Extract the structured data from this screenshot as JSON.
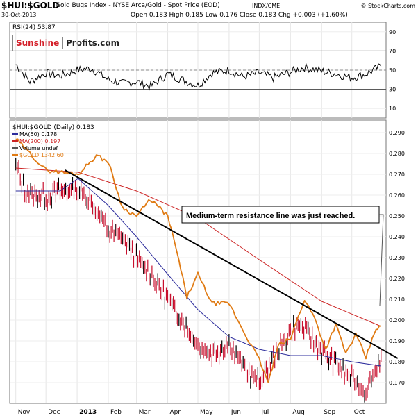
{
  "header": {
    "symbol": "$HUI:$GOLD",
    "description": "Gold Bugs Index - NYSE Arca/Gold - Spot Price (EOD)",
    "exchange": "INDX/CME",
    "credit": "© StockCharts.com",
    "date": "30-Oct-2013",
    "ohlc": "Open 0.183  High 0.185  Low 0.176  Close 0.183  Chg +0.003 (+1.60%)"
  },
  "logo": {
    "part1": "Sunshine",
    "part2": "Profits.com"
  },
  "colors": {
    "price": "#c8102e",
    "ma50": "#2c2c9c",
    "ma200": "#cc2222",
    "gold": "#e07b14",
    "trend": "#000000",
    "logo_red": "#d4202a"
  },
  "chart_data": [
    {
      "type": "line",
      "title": "RSI(24) 53.87",
      "ylim": [
        0,
        100
      ],
      "y_ticks": [
        "90",
        "70",
        "50",
        "30",
        "10"
      ],
      "reference_lines": [
        70,
        50,
        30
      ],
      "series": [
        {
          "name": "RSI(24) 53.87",
          "x": [
            "2012-11-01",
            "2012-11-15",
            "2012-12-01",
            "2012-12-15",
            "2013-01-01",
            "2013-01-15",
            "2013-02-01",
            "2013-02-15",
            "2013-03-01",
            "2013-03-15",
            "2013-04-01",
            "2013-04-15",
            "2013-05-01",
            "2013-05-15",
            "2013-06-01",
            "2013-06-15",
            "2013-07-01",
            "2013-07-15",
            "2013-08-01",
            "2013-08-15",
            "2013-09-01",
            "2013-09-15",
            "2013-10-01",
            "2013-10-15",
            "2013-10-30"
          ],
          "values": [
            56,
            38,
            47,
            44,
            50,
            52,
            40,
            36,
            38,
            33,
            46,
            40,
            34,
            47,
            50,
            43,
            47,
            42,
            48,
            53,
            49,
            46,
            42,
            46,
            54
          ]
        }
      ]
    },
    {
      "type": "line",
      "title": "$HUI:$GOLD (Daily) 0.183",
      "ylim": [
        0.16,
        0.296
      ],
      "y_ticks": [
        "0.290",
        "0.280",
        "0.270",
        "0.260",
        "0.250",
        "0.240",
        "0.230",
        "0.220",
        "0.210",
        "0.200",
        "0.190",
        "0.180",
        "0.170"
      ],
      "x_ticks": [
        "Nov",
        "Dec",
        "2013",
        "Feb",
        "Mar",
        "Apr",
        "May",
        "Jun",
        "Jul",
        "Aug",
        "Sep",
        "Oct"
      ],
      "legend": [
        "MA(50) 0.178",
        "MA(200) 0.197",
        "Volume undef",
        "$GOLD  1342.60"
      ],
      "legend_placement": "top-left",
      "annotation": "Medium-term resistance line was just reached.",
      "series": [
        {
          "name": "$HUI:$GOLD (Daily) 0.183",
          "x": [
            "2012-11-01",
            "2012-11-10",
            "2012-11-20",
            "2012-12-01",
            "2012-12-15",
            "2013-01-02",
            "2013-01-15",
            "2013-02-01",
            "2013-02-15",
            "2013-03-01",
            "2013-03-15",
            "2013-04-01",
            "2013-04-15",
            "2013-05-01",
            "2013-05-15",
            "2013-06-01",
            "2013-06-15",
            "2013-07-01",
            "2013-07-15",
            "2013-08-01",
            "2013-08-10",
            "2013-08-20",
            "2013-09-01",
            "2013-09-15",
            "2013-10-01",
            "2013-10-15",
            "2013-10-30"
          ],
          "values": [
            0.275,
            0.262,
            0.26,
            0.259,
            0.262,
            0.263,
            0.257,
            0.243,
            0.24,
            0.23,
            0.222,
            0.21,
            0.2,
            0.188,
            0.184,
            0.189,
            0.178,
            0.17,
            0.182,
            0.195,
            0.198,
            0.193,
            0.185,
            0.179,
            0.172,
            0.166,
            0.183
          ]
        },
        {
          "name": "MA(50) 0.178",
          "x": [
            "2012-11-01",
            "2012-12-15",
            "2013-01-02",
            "2013-02-01",
            "2013-03-01",
            "2013-04-01",
            "2013-05-01",
            "2013-06-01",
            "2013-07-01",
            "2013-08-01",
            "2013-09-01",
            "2013-10-01",
            "2013-10-30"
          ],
          "values": [
            0.262,
            0.262,
            0.268,
            0.255,
            0.24,
            0.222,
            0.205,
            0.192,
            0.186,
            0.183,
            0.183,
            0.18,
            0.178
          ]
        },
        {
          "name": "MA(200) 0.197",
          "x": [
            "2012-11-01",
            "2013-01-02",
            "2013-03-01",
            "2013-05-01",
            "2013-07-01",
            "2013-09-01",
            "2013-10-30"
          ],
          "values": [
            0.273,
            0.271,
            0.262,
            0.249,
            0.229,
            0.209,
            0.197
          ]
        },
        {
          "name": "$GOLD  1342.60",
          "x": [
            "2012-11-01",
            "2012-12-01",
            "2013-01-02",
            "2013-01-20",
            "2013-02-01",
            "2013-02-15",
            "2013-03-01",
            "2013-03-15",
            "2013-04-01",
            "2013-04-10",
            "2013-04-20",
            "2013-05-01",
            "2013-05-15",
            "2013-06-01",
            "2013-06-15",
            "2013-07-01",
            "2013-07-10",
            "2013-07-20",
            "2013-08-01",
            "2013-08-15",
            "2013-08-25",
            "2013-09-05",
            "2013-09-15",
            "2013-09-25",
            "2013-10-05",
            "2013-10-15",
            "2013-10-25",
            "2013-10-30"
          ],
          "values": [
            0.287,
            0.272,
            0.27,
            0.279,
            0.276,
            0.254,
            0.25,
            0.258,
            0.25,
            0.233,
            0.211,
            0.222,
            0.208,
            0.208,
            0.195,
            0.181,
            0.17,
            0.188,
            0.191,
            0.21,
            0.201,
            0.186,
            0.198,
            0.184,
            0.193,
            0.182,
            0.196,
            0.197
          ]
        }
      ],
      "trendline": {
        "x": [
          "2012-12-20",
          "2013-10-30"
        ],
        "values": [
          0.272,
          0.187
        ]
      }
    }
  ]
}
